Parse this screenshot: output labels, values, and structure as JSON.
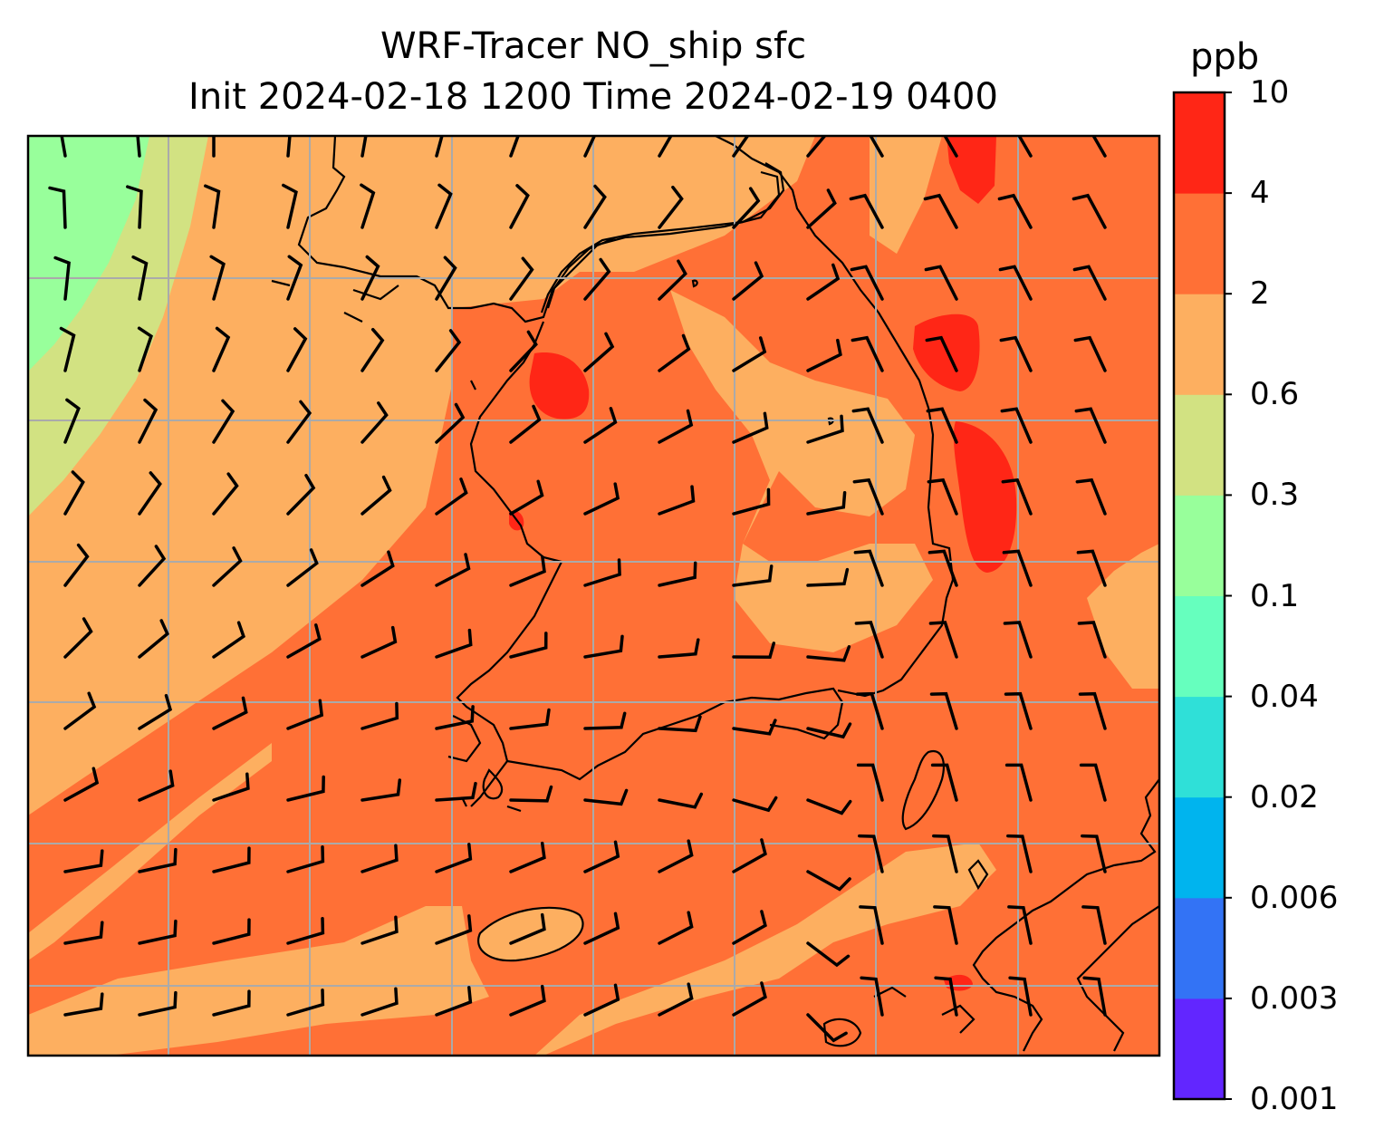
{
  "title_line1": "WRF-Tracer NO_ship sfc",
  "title_line2": "Init 2024-02-18 1200 Time 2024-02-19 0400",
  "colorbar": {
    "unit": "ppb",
    "tick_labels": [
      "0.001",
      "0.003",
      "0.006",
      "0.02",
      "0.04",
      "0.1",
      "0.3",
      "0.6",
      "2",
      "4",
      "10"
    ],
    "colors": [
      "#6226ff",
      "#3373f5",
      "#00b4ee",
      "#2fe0d8",
      "#66ffbe",
      "#98ff9b",
      "#d2e282",
      "#fdaf60",
      "#ff7036",
      "#ff2616"
    ]
  },
  "map": {
    "fill_colors": {
      "level_0.1_0.3": "#98ff9b",
      "level_0.3_0.6": "#d2e282",
      "level_0.6_2": "#fdaf60",
      "level_2_4": "#ff7036",
      "level_4_10": "#ff2616"
    },
    "gridline_color": "#aaaaaa",
    "coastline_color": "#000000"
  }
}
